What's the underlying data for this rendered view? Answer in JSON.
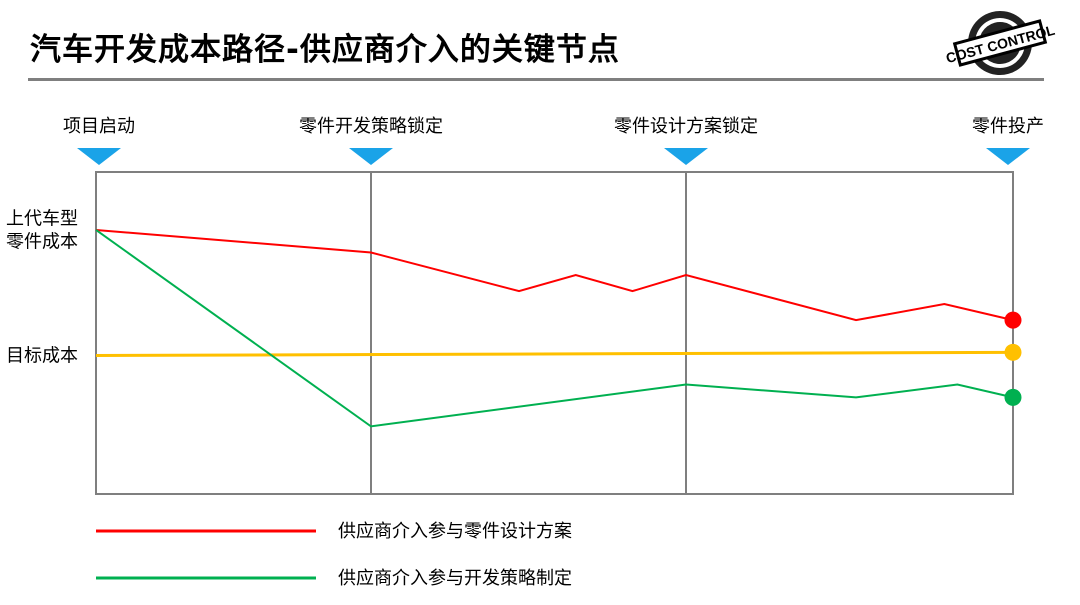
{
  "title": "汽车开发成本路径-供应商介入的关键节点",
  "logo": {
    "text": "COST CONTROL"
  },
  "chart_data": {
    "type": "line",
    "title": "",
    "milestones": [
      "项目启动",
      "零件开发策略锁定",
      "零件设计方案锁定",
      "零件投产"
    ],
    "y_labels": [
      {
        "lines": [
          "上代车型",
          "零件成本"
        ],
        "value": 82
      },
      {
        "lines": [
          "目标成本"
        ],
        "value": 43
      }
    ],
    "ylim": [
      0,
      100
    ],
    "xlim": [
      0,
      3
    ],
    "grid": "vertical lines at milestones",
    "legend_placement": "bottom",
    "marker_color": "#1aa3e8",
    "series": [
      {
        "name": "供应商介入参与零件设计方案",
        "color": "#ff0000",
        "points": [
          [
            0,
            82
          ],
          [
            1,
            75
          ],
          [
            1.47,
            63
          ],
          [
            1.65,
            68
          ],
          [
            1.83,
            63
          ],
          [
            2,
            68
          ],
          [
            2.52,
            54
          ],
          [
            2.79,
            59
          ],
          [
            3,
            54
          ]
        ]
      },
      {
        "color": "#ffc000",
        "points": [
          [
            0,
            43
          ],
          [
            3,
            44
          ]
        ]
      },
      {
        "name": "供应商介入参与开发策略制定",
        "color": "#00b050",
        "points": [
          [
            0,
            82
          ],
          [
            1,
            21
          ],
          [
            2,
            34
          ],
          [
            2.52,
            30
          ],
          [
            2.83,
            34
          ],
          [
            3,
            30
          ]
        ]
      }
    ]
  }
}
